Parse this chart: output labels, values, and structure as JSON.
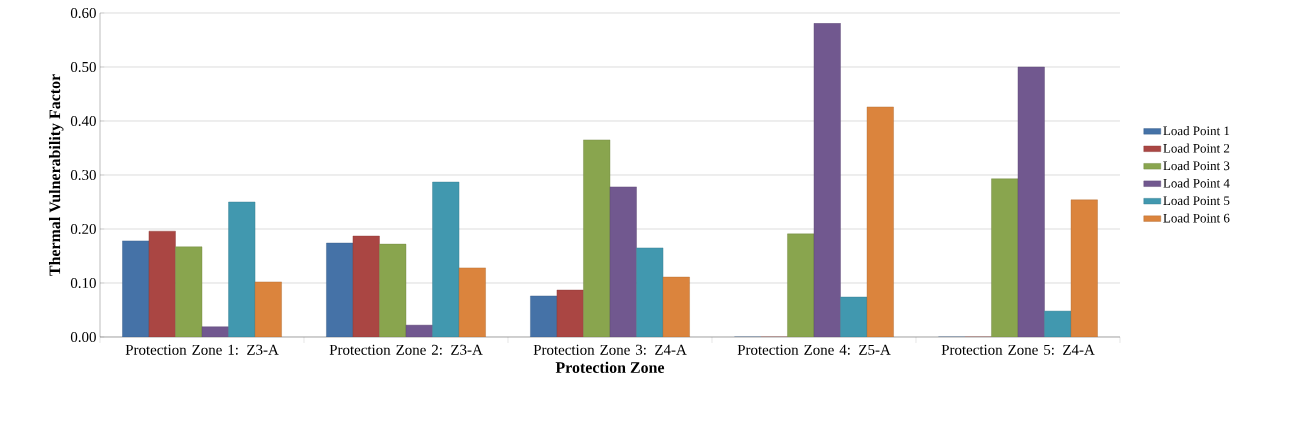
{
  "chart_data": {
    "type": "bar",
    "xlabel": "Protection Zone",
    "ylabel": "Thermal  Vulnerability Factor",
    "categories": [
      "Protection Zone 1: Z3-A",
      "Protection Zone 2: Z3-A",
      "Protection Zone 3: Z4-A",
      "Protection Zone 4: Z5-A",
      "Protection Zone 5: Z4-A"
    ],
    "series": [
      {
        "name": "Load Point 1",
        "color": "#4572a7",
        "values": [
          0.178,
          0.174,
          0.076,
          0,
          0
        ]
      },
      {
        "name": "Load Point 2",
        "color": "#aa4643",
        "values": [
          0.196,
          0.187,
          0.087,
          0,
          0
        ]
      },
      {
        "name": "Load Point 3",
        "color": "#89a54e",
        "values": [
          0.167,
          0.172,
          0.365,
          0.191,
          0.293
        ]
      },
      {
        "name": "Load Point 4",
        "color": "#71588f",
        "values": [
          0.019,
          0.022,
          0.278,
          0.581,
          0.5
        ]
      },
      {
        "name": "Load Point 5",
        "color": "#4198af",
        "values": [
          0.25,
          0.287,
          0.165,
          0.074,
          0.048
        ]
      },
      {
        "name": "Load Point 6",
        "color": "#db843d",
        "values": [
          0.102,
          0.128,
          0.111,
          0.426,
          0.254
        ]
      }
    ],
    "ylim": [
      0,
      0.6
    ],
    "yticks": [
      {
        "value": 0,
        "label": "0.00"
      },
      {
        "value": 0.1,
        "label": "0.10"
      },
      {
        "value": 0.2,
        "label": "0.20"
      },
      {
        "value": 0.3,
        "label": "0.30"
      },
      {
        "value": 0.4,
        "label": "0.40"
      },
      {
        "value": 0.5,
        "label": "0.50"
      },
      {
        "value": 0.6,
        "label": "0.60"
      }
    ],
    "grid": "y",
    "legend": "right"
  }
}
